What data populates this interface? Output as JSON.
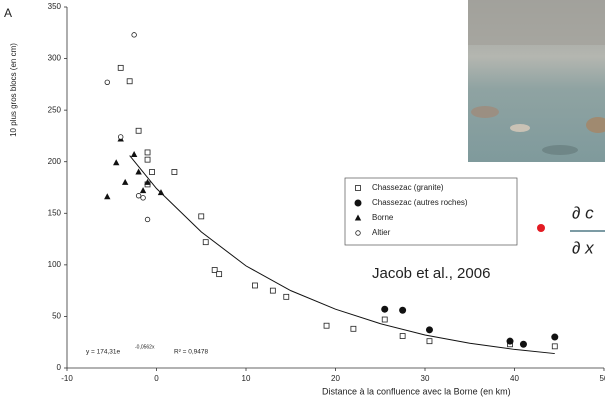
{
  "chart_data": {
    "type": "scatter",
    "panel_label": "A",
    "x_label": "Distance à la confluence avec la Borne (en km)",
    "y_label": "10 plus gros blocs (en cm)",
    "annotation": "Jacob et al., 2006",
    "equation": {
      "base": "y = 174,31e",
      "exponent": "-0,0562x",
      "r2": "R² = 0,9478"
    },
    "formula": {
      "numerator": "∂ c",
      "denominator": "∂ x"
    },
    "xlim": [
      -10,
      50
    ],
    "xticks": [
      -10,
      0,
      10,
      20,
      30,
      40,
      50
    ],
    "ylim": [
      0,
      350
    ],
    "yticks": [
      0,
      50,
      100,
      150,
      200,
      250,
      300,
      350
    ],
    "series": [
      {
        "name": "Chassezac (granite)",
        "marker": "square",
        "color": "#222",
        "x": [
          -4,
          -3,
          -2,
          -1,
          -1,
          -1,
          -0.5,
          2,
          5,
          5.5,
          6.5,
          7,
          11,
          13,
          14.5,
          19,
          22,
          25.5,
          27.5,
          30.5,
          39.5,
          44.5
        ],
        "values": [
          291,
          278,
          230,
          209,
          202,
          178,
          190,
          190,
          147,
          122,
          95,
          91,
          80,
          75,
          69,
          41,
          38,
          47,
          31,
          26,
          23,
          21
        ]
      },
      {
        "name": "Chassezac (autres roches)",
        "marker": "dot",
        "color": "#111",
        "x": [
          25.5,
          27.5,
          30.5,
          39.5,
          41,
          44.5
        ],
        "values": [
          57,
          56,
          37,
          26,
          23,
          30
        ]
      },
      {
        "name": "Borne",
        "marker": "triangle",
        "color": "#111",
        "x": [
          -5.5,
          -4.5,
          -4,
          -3.5,
          -2.5,
          -2,
          -1.5,
          -1,
          0.5
        ],
        "values": [
          166,
          199,
          222,
          180,
          207,
          190,
          172,
          180,
          170
        ]
      },
      {
        "name": "Altier",
        "marker": "circle",
        "color": "#222",
        "x": [
          -5.5,
          -4,
          -2.5,
          -2,
          -1.5,
          -1
        ],
        "values": [
          277,
          224,
          323,
          167,
          165,
          144
        ]
      }
    ],
    "trendline": {
      "color": "#111",
      "x": [
        -3,
        0,
        5,
        10,
        15,
        20,
        25,
        30,
        35,
        40,
        44.5
      ],
      "values": [
        206,
        174,
        132,
        99,
        75,
        57,
        43,
        32,
        24,
        18,
        14
      ]
    }
  }
}
